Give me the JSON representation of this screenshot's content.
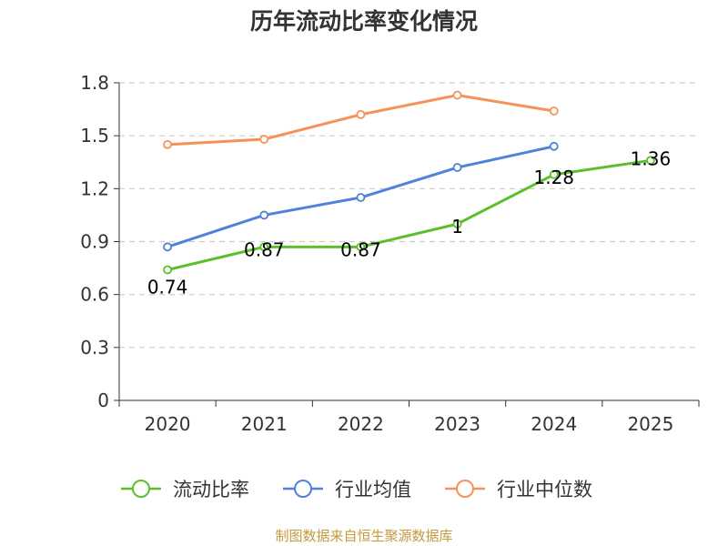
{
  "chart_data": {
    "type": "line",
    "title": "历年流动比率变化情况",
    "categories": [
      "2020",
      "2021",
      "2022",
      "2023",
      "2024",
      "2025"
    ],
    "ylim": [
      0,
      1.8
    ],
    "yticks": [
      "0",
      "0.3",
      "0.6",
      "0.9",
      "1.2",
      "1.5",
      "1.8"
    ],
    "grid": true,
    "legend_position": "bottom",
    "series": [
      {
        "name": "流动比率",
        "color": "#5bbf2c",
        "values": [
          0.74,
          0.87,
          0.87,
          1.0,
          1.28,
          1.36
        ],
        "labels": [
          "0.74",
          "0.87",
          "0.87",
          "1",
          "1.28",
          "1.36"
        ]
      },
      {
        "name": "行业均值",
        "color": "#4f82d9",
        "values": [
          0.87,
          1.05,
          1.15,
          1.32,
          1.44,
          null
        ]
      },
      {
        "name": "行业中位数",
        "color": "#f59258",
        "values": [
          1.45,
          1.48,
          1.62,
          1.73,
          1.64,
          null
        ]
      }
    ],
    "source": "制图数据来自恒生聚源数据库"
  }
}
